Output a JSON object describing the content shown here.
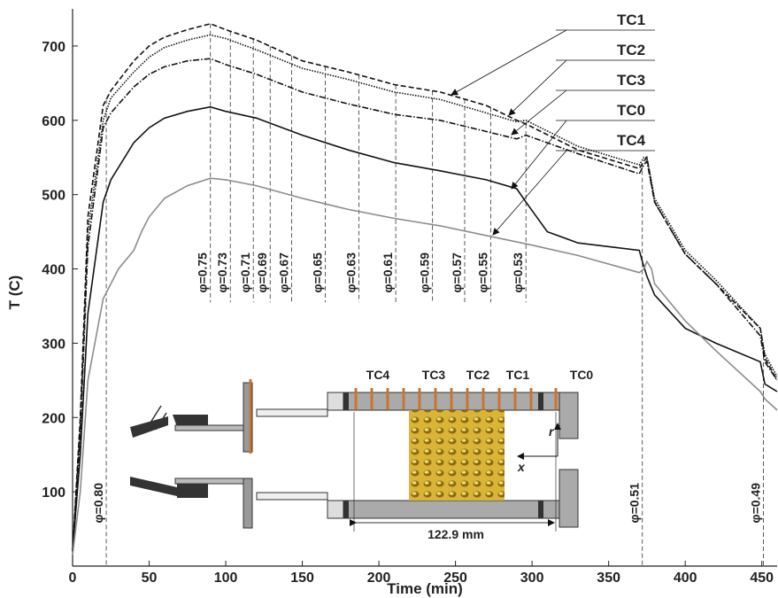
{
  "chart_data": {
    "type": "line",
    "x_label": "Time (min)",
    "y_label": "T (C)",
    "xlim": [
      0,
      460
    ],
    "ylim": [
      0,
      750
    ],
    "xticks": [
      0,
      50,
      100,
      150,
      200,
      250,
      300,
      350,
      400,
      450
    ],
    "yticks": [
      100,
      200,
      300,
      400,
      500,
      600,
      700
    ],
    "series": [
      {
        "name": "TC1",
        "color": "#111111",
        "style": "dashed",
        "x": [
          0,
          5,
          10,
          20,
          25,
          40,
          50,
          60,
          75,
          90,
          100,
          120,
          150,
          180,
          210,
          240,
          270,
          290,
          296,
          330,
          370,
          373,
          375,
          380,
          400,
          420,
          449,
          452,
          460
        ],
        "values": [
          20,
          200,
          470,
          620,
          640,
          680,
          700,
          712,
          722,
          730,
          722,
          708,
          680,
          665,
          648,
          638,
          620,
          600,
          595,
          560,
          535,
          545,
          550,
          490,
          420,
          380,
          320,
          280,
          250
        ]
      },
      {
        "name": "TC2",
        "color": "#111111",
        "style": "dotted",
        "x": [
          0,
          5,
          10,
          20,
          25,
          40,
          50,
          60,
          75,
          90,
          100,
          120,
          150,
          180,
          210,
          240,
          270,
          290,
          296,
          330,
          370,
          373,
          375,
          380,
          400,
          420,
          449,
          452,
          460
        ],
        "values": [
          20,
          190,
          450,
          600,
          630,
          665,
          685,
          698,
          708,
          715,
          710,
          695,
          670,
          655,
          638,
          628,
          610,
          598,
          600,
          565,
          540,
          550,
          550,
          495,
          425,
          385,
          320,
          285,
          255
        ]
      },
      {
        "name": "TC3",
        "color": "#111111",
        "style": "dashdot",
        "x": [
          0,
          5,
          10,
          20,
          25,
          40,
          50,
          60,
          75,
          90,
          100,
          120,
          150,
          180,
          210,
          240,
          270,
          290,
          296,
          330,
          370,
          373,
          375,
          380,
          400,
          420,
          449,
          452,
          460
        ],
        "values": [
          20,
          180,
          430,
          590,
          610,
          645,
          662,
          672,
          680,
          683,
          675,
          662,
          638,
          622,
          608,
          600,
          585,
          575,
          580,
          555,
          528,
          540,
          545,
          490,
          420,
          380,
          310,
          275,
          250
        ]
      },
      {
        "name": "TC0",
        "color": "#111111",
        "style": "solid",
        "x": [
          0,
          5,
          10,
          20,
          25,
          40,
          50,
          60,
          75,
          90,
          100,
          120,
          150,
          180,
          210,
          240,
          270,
          290,
          296,
          310,
          330,
          370,
          372,
          375,
          380,
          400,
          420,
          449,
          452,
          460
        ],
        "values": [
          20,
          150,
          340,
          490,
          520,
          570,
          590,
          603,
          612,
          618,
          612,
          603,
          580,
          560,
          543,
          532,
          520,
          508,
          490,
          450,
          435,
          425,
          410,
          390,
          365,
          320,
          300,
          275,
          245,
          235
        ]
      },
      {
        "name": "TC4",
        "color": "#8c8c8c",
        "style": "solid",
        "x": [
          0,
          5,
          10,
          20,
          30,
          40,
          45,
          50,
          60,
          75,
          90,
          100,
          120,
          150,
          180,
          210,
          240,
          270,
          300,
          330,
          370,
          373,
          375,
          378,
          380,
          400,
          420,
          449,
          452,
          460
        ],
        "values": [
          15,
          100,
          250,
          360,
          400,
          425,
          450,
          470,
          495,
          512,
          522,
          520,
          512,
          495,
          480,
          468,
          458,
          445,
          432,
          418,
          395,
          400,
          410,
          400,
          380,
          330,
          290,
          235,
          225,
          210
        ]
      }
    ],
    "annotations": [
      {
        "x": 22,
        "label": "φ=0.80"
      },
      {
        "x": 90,
        "label": "φ=0.75"
      },
      {
        "x": 103,
        "label": "φ=0.73"
      },
      {
        "x": 118,
        "label": "φ=0.71"
      },
      {
        "x": 129,
        "label": "φ=0.69"
      },
      {
        "x": 143,
        "label": "φ=0.67"
      },
      {
        "x": 165,
        "label": "φ=0.65"
      },
      {
        "x": 187,
        "label": "φ=0.63"
      },
      {
        "x": 211,
        "label": "φ=0.61"
      },
      {
        "x": 235,
        "label": "φ=0.59"
      },
      {
        "x": 256,
        "label": "φ=0.57"
      },
      {
        "x": 273,
        "label": "φ=0.55"
      },
      {
        "x": 296,
        "label": "φ=0.53"
      },
      {
        "x": 372,
        "label": "φ=0.51"
      },
      {
        "x": 451,
        "label": "φ=0.49"
      }
    ]
  },
  "inset": {
    "dimension_label": "122.9 mm",
    "axis_labels": [
      "r",
      "x"
    ]
  }
}
